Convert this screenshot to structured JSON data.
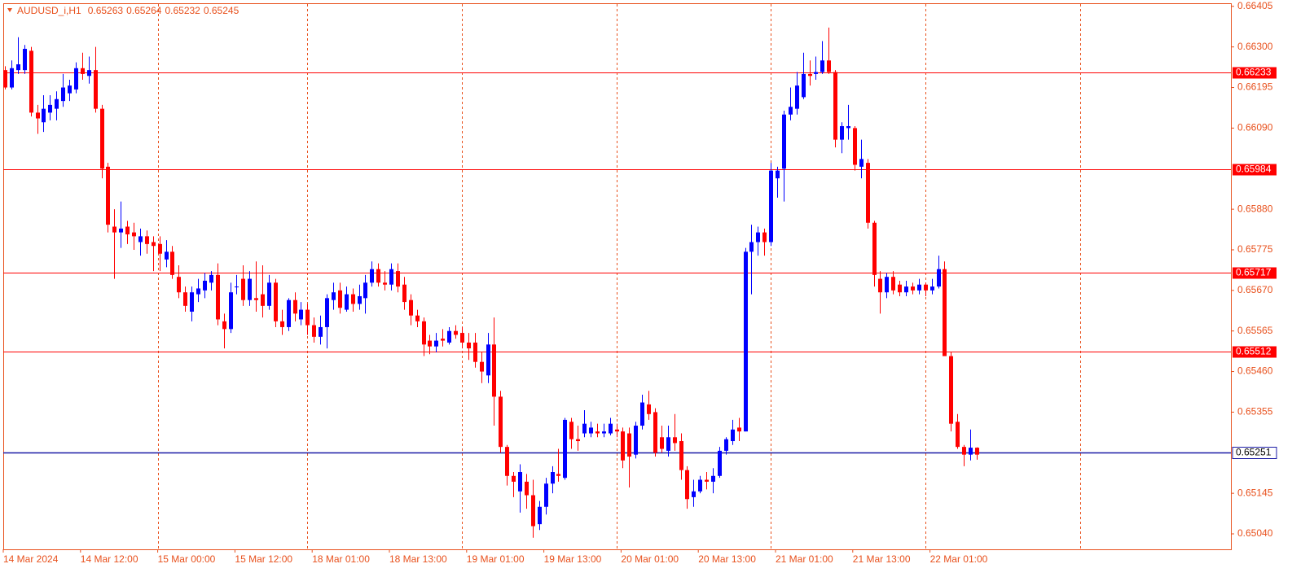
{
  "chart_data": {
    "type": "candlestick",
    "title": "AUDUSD_i,H1",
    "categories": [
      "14 Mar 2024",
      null,
      null,
      null,
      null,
      null,
      null,
      null,
      null,
      null,
      null,
      null,
      "14 Mar 12:00",
      null,
      null,
      null,
      null,
      null,
      null,
      null,
      null,
      null,
      null,
      null,
      "15 Mar 00:00",
      null,
      null,
      null,
      null,
      null,
      null,
      null,
      null,
      null,
      null,
      null,
      "15 Mar 12:00",
      null,
      null,
      null,
      null,
      null,
      null,
      null,
      null,
      null,
      null,
      null,
      "18 Mar 01:00",
      null,
      null,
      null,
      null,
      null,
      null,
      null,
      null,
      null,
      null,
      null,
      "18 Mar 13:00",
      null,
      null,
      null,
      null,
      null,
      null,
      null,
      null,
      null,
      null,
      null,
      "19 Mar 01:00",
      null,
      null,
      null,
      null,
      null,
      null,
      null,
      null,
      null,
      null,
      null,
      "19 Mar 13:00",
      null,
      null,
      null,
      null,
      null,
      null,
      null,
      null,
      null,
      null,
      null,
      "20 Mar 01:00",
      null,
      null,
      null,
      null,
      null,
      null,
      null,
      null,
      null,
      null,
      null,
      "20 Mar 13:00",
      null,
      null,
      null,
      null,
      null,
      null,
      null,
      null,
      null,
      null,
      null,
      "21 Mar 01:00",
      null,
      null,
      null,
      null,
      null,
      null,
      null,
      null,
      null,
      null,
      null,
      "21 Mar 13:00",
      null,
      null,
      null,
      null,
      null,
      null,
      null,
      null,
      null,
      null,
      null,
      "22 Mar 01:00",
      null,
      null,
      null,
      null,
      null,
      null,
      null
    ],
    "open": [
      0.6624,
      0.66195,
      0.6624,
      0.6624,
      0.6629,
      0.6613,
      0.66105,
      0.6613,
      0.6614,
      0.6616,
      0.6618,
      0.6619,
      0.66245,
      0.66225,
      0.6624,
      0.6614,
      0.6599,
      0.65835,
      0.6582,
      0.65835,
      0.6582,
      0.65795,
      0.6581,
      0.65795,
      0.6579,
      0.6575,
      0.6577,
      0.65705,
      0.65665,
      0.65615,
      0.6566,
      0.6567,
      0.6569,
      0.6571,
      0.6559,
      0.6557,
      0.6568,
      0.657,
      0.65645,
      0.6565,
      0.6566,
      0.6563,
      0.6569,
      0.6559,
      0.65575,
      0.65645,
      0.65595,
      0.6562,
      0.6558,
      0.6555,
      0.65575,
      0.65645,
      0.6567,
      0.6562,
      0.6566,
      0.65635,
      0.6565,
      0.6569,
      0.65725,
      0.6569,
      0.65685,
      0.6572,
      0.65685,
      0.65645,
      0.65605,
      0.6559,
      0.6554,
      0.65525,
      0.65545,
      0.65535,
      0.65565,
      0.6556,
      0.65535,
      0.65535,
      0.65485,
      0.6545,
      0.6553,
      0.65395,
      0.65265,
      0.6519,
      0.6515,
      0.65175,
      0.6514,
      0.65065,
      0.6511,
      0.6517,
      0.65195,
      0.65185,
      0.6533,
      0.65285,
      0.653,
      0.653,
      0.65305,
      0.653,
      0.653,
      0.6531,
      0.65305,
      0.653,
      0.65245,
      0.6532,
      0.65375,
      0.65355,
      0.6529,
      0.65255,
      0.6529,
      0.6528,
      0.65205,
      0.65135,
      0.6515,
      0.6518,
      0.65175,
      0.6519,
      0.65255,
      0.6528,
      0.65315,
      0.65305,
      0.6577,
      0.65795,
      0.6582,
      0.65795,
      0.6596,
      0.65985,
      0.66125,
      0.6614,
      0.6617,
      0.6623,
      0.6623,
      0.66235,
      0.66265,
      0.66235,
      0.6606,
      0.6609,
      0.6609,
      0.6599,
      0.66,
      0.65845,
      0.657,
      0.65665,
      0.65705,
      0.65685,
      0.65665,
      0.6568,
      0.6567,
      0.65685,
      0.6567,
      0.6568,
      0.65725,
      0.655,
      0.6533,
      0.65265,
      0.65245,
      0.65263
    ],
    "high": [
      0.6625,
      0.66265,
      0.66325,
      0.66305,
      0.663,
      0.6615,
      0.66175,
      0.66175,
      0.66185,
      0.6623,
      0.66215,
      0.6626,
      0.66285,
      0.66275,
      0.663,
      0.6615,
      0.66,
      0.6588,
      0.659,
      0.6585,
      0.65845,
      0.6583,
      0.65825,
      0.6581,
      0.6581,
      0.658,
      0.65785,
      0.65735,
      0.6568,
      0.6568,
      0.657,
      0.65715,
      0.6572,
      0.6574,
      0.6561,
      0.6569,
      0.6571,
      0.65735,
      0.6572,
      0.65745,
      0.65735,
      0.6571,
      0.657,
      0.6562,
      0.6565,
      0.65665,
      0.6564,
      0.65635,
      0.656,
      0.65605,
      0.6566,
      0.6569,
      0.6569,
      0.6568,
      0.65675,
      0.65685,
      0.6571,
      0.65745,
      0.6574,
      0.6572,
      0.6574,
      0.6574,
      0.65705,
      0.6566,
      0.6562,
      0.656,
      0.65555,
      0.6556,
      0.6557,
      0.65575,
      0.6558,
      0.65575,
      0.6556,
      0.6556,
      0.6551,
      0.6556,
      0.656,
      0.6541,
      0.6527,
      0.652,
      0.6522,
      0.65195,
      0.6518,
      0.65125,
      0.65185,
      0.65215,
      0.6526,
      0.6534,
      0.6534,
      0.6532,
      0.6536,
      0.6533,
      0.65325,
      0.65325,
      0.6534,
      0.65325,
      0.65315,
      0.65315,
      0.6533,
      0.654,
      0.6541,
      0.65365,
      0.6532,
      0.6532,
      0.6535,
      0.653,
      0.65215,
      0.6518,
      0.6519,
      0.652,
      0.6521,
      0.65265,
      0.6529,
      0.65335,
      0.6534,
      0.6578,
      0.6584,
      0.65835,
      0.6583,
      0.66,
      0.6599,
      0.66135,
      0.66195,
      0.66235,
      0.66285,
      0.66265,
      0.66275,
      0.66315,
      0.6635,
      0.6624,
      0.66105,
      0.6615,
      0.66095,
      0.6606,
      0.6601,
      0.6585,
      0.6572,
      0.65715,
      0.6572,
      0.65695,
      0.65695,
      0.6569,
      0.657,
      0.6569,
      0.657,
      0.6576,
      0.65745,
      0.6551,
      0.6535,
      0.6527,
      0.6531,
      0.65264
    ],
    "low": [
      0.6619,
      0.6619,
      0.6623,
      0.6623,
      0.6612,
      0.66075,
      0.6608,
      0.6611,
      0.6611,
      0.66145,
      0.6616,
      0.6618,
      0.66215,
      0.66205,
      0.6613,
      0.6596,
      0.6582,
      0.657,
      0.6578,
      0.6579,
      0.65775,
      0.6576,
      0.65765,
      0.6572,
      0.6572,
      0.6573,
      0.657,
      0.6565,
      0.65615,
      0.6559,
      0.6564,
      0.6565,
      0.6567,
      0.6558,
      0.6552,
      0.6556,
      0.6566,
      0.6563,
      0.6563,
      0.65615,
      0.656,
      0.6562,
      0.65575,
      0.65555,
      0.65565,
      0.6559,
      0.6558,
      0.65555,
      0.65535,
      0.6553,
      0.6552,
      0.6562,
      0.6561,
      0.65615,
      0.65615,
      0.6562,
      0.6561,
      0.6568,
      0.6568,
      0.6567,
      0.6567,
      0.65665,
      0.6562,
      0.6558,
      0.65575,
      0.655,
      0.65505,
      0.6551,
      0.65525,
      0.6553,
      0.65545,
      0.6552,
      0.6549,
      0.6547,
      0.6543,
      0.6543,
      0.6532,
      0.6525,
      0.65165,
      0.65135,
      0.65095,
      0.65105,
      0.6503,
      0.6505,
      0.6509,
      0.65145,
      0.65175,
      0.6518,
      0.6526,
      0.65255,
      0.6529,
      0.6529,
      0.6529,
      0.6529,
      0.65295,
      0.6529,
      0.6521,
      0.6516,
      0.65235,
      0.6531,
      0.65335,
      0.6524,
      0.6525,
      0.6524,
      0.65255,
      0.6518,
      0.65105,
      0.6511,
      0.65145,
      0.65155,
      0.65145,
      0.65185,
      0.65245,
      0.6527,
      0.6528,
      0.65305,
      0.6566,
      0.6576,
      0.6576,
      0.65785,
      0.6591,
      0.659,
      0.6611,
      0.66125,
      0.66165,
      0.662,
      0.66215,
      0.6623,
      0.6623,
      0.6604,
      0.66025,
      0.6606,
      0.6598,
      0.6596,
      0.6583,
      0.6568,
      0.6561,
      0.6565,
      0.6566,
      0.65655,
      0.65655,
      0.6566,
      0.6566,
      0.65655,
      0.6566,
      0.65675,
      0.655,
      0.65305,
      0.6526,
      0.65215,
      0.6523,
      0.65232
    ],
    "close": [
      0.66195,
      0.66245,
      0.66255,
      0.66295,
      0.6613,
      0.66115,
      0.6614,
      0.6615,
      0.66165,
      0.66195,
      0.662,
      0.66245,
      0.6623,
      0.6624,
      0.6614,
      0.65985,
      0.6584,
      0.6582,
      0.6583,
      0.65815,
      0.6581,
      0.6581,
      0.6579,
      0.65785,
      0.65765,
      0.6577,
      0.6571,
      0.65665,
      0.6563,
      0.65665,
      0.65675,
      0.65695,
      0.6571,
      0.65595,
      0.6557,
      0.65665,
      0.6568,
      0.65645,
      0.657,
      0.65645,
      0.6563,
      0.6569,
      0.6559,
      0.65575,
      0.65645,
      0.6561,
      0.6562,
      0.6558,
      0.6555,
      0.65575,
      0.6565,
      0.65665,
      0.65625,
      0.6566,
      0.65635,
      0.65655,
      0.6569,
      0.65725,
      0.6569,
      0.65685,
      0.65725,
      0.6568,
      0.6564,
      0.65605,
      0.6559,
      0.6553,
      0.65525,
      0.6554,
      0.6554,
      0.65565,
      0.65555,
      0.65535,
      0.6552,
      0.65485,
      0.6546,
      0.6553,
      0.65395,
      0.65265,
      0.6519,
      0.65175,
      0.652,
      0.6514,
      0.6506,
      0.6511,
      0.6517,
      0.652,
      0.6519,
      0.65335,
      0.65285,
      0.6528,
      0.65325,
      0.65315,
      0.653,
      0.65305,
      0.65325,
      0.65305,
      0.6523,
      0.6524,
      0.6532,
      0.6538,
      0.6535,
      0.6525,
      0.6526,
      0.6529,
      0.65275,
      0.65205,
      0.6513,
      0.6515,
      0.6518,
      0.65175,
      0.6519,
      0.65255,
      0.65285,
      0.6531,
      0.65305,
      0.6577,
      0.65795,
      0.6582,
      0.65795,
      0.6598,
      0.6598,
      0.66125,
      0.66145,
      0.662,
      0.6623,
      0.66225,
      0.66235,
      0.66265,
      0.66235,
      0.6606,
      0.66095,
      0.66095,
      0.65995,
      0.6601,
      0.65845,
      0.6571,
      0.65665,
      0.65705,
      0.6567,
      0.65665,
      0.6568,
      0.6567,
      0.65685,
      0.6567,
      0.6568,
      0.65725,
      0.655,
      0.65325,
      0.65265,
      0.65245,
      0.65263,
      0.65245
    ],
    "up_color": "#0000ff",
    "down_color": "#ff0000",
    "ylim": [
      0.65,
      0.66413
    ],
    "yticks": [
      0.66405,
      {
        "value": 0.663,
        "label": "0.66300"
      },
      0.66195,
      {
        "value": 0.6609,
        "label": "0.66090"
      },
      {
        "value": 0.6588,
        "label": "0.65880"
      },
      0.65775,
      {
        "value": 0.6567,
        "label": "0.65670"
      },
      0.65565,
      {
        "value": 0.6546,
        "label": "0.65460"
      },
      0.65355,
      0.65145,
      {
        "value": 0.6504,
        "label": "0.65040"
      }
    ],
    "levels": [
      0.66233,
      0.65984,
      0.65717,
      0.65512
    ],
    "level_color": "#ff0000",
    "price_line": 0.65251,
    "price_line_color": "#1a1aa6"
  }
}
